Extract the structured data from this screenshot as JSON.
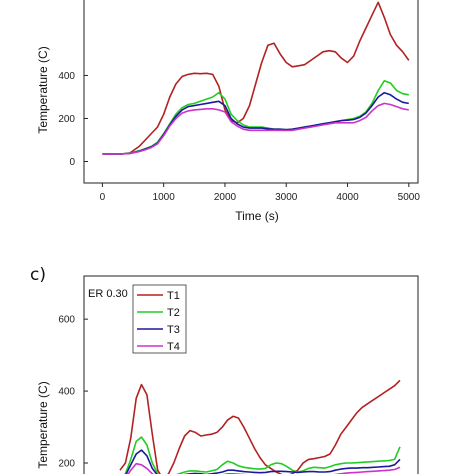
{
  "chart_data": [
    {
      "type": "line",
      "panel_label": "",
      "xlabel": "Time (s)",
      "ylabel": "Temperature (C)",
      "xlim": [
        -300,
        5150
      ],
      "ylim": [
        -100,
        760
      ],
      "xticks": [
        0,
        1000,
        2000,
        3000,
        4000,
        5000
      ],
      "yticks": [
        0,
        200,
        400
      ],
      "x": [
        0,
        300,
        450,
        600,
        700,
        800,
        900,
        1000,
        1100,
        1200,
        1300,
        1400,
        1500,
        1600,
        1700,
        1800,
        1900,
        2000,
        2100,
        2200,
        2300,
        2400,
        2500,
        2600,
        2700,
        2800,
        2900,
        3000,
        3100,
        3200,
        3300,
        3400,
        3500,
        3600,
        3700,
        3800,
        3900,
        4000,
        4100,
        4200,
        4300,
        4400,
        4500,
        4600,
        4700,
        4800,
        4900,
        5000
      ],
      "series": [
        {
          "name": "T1",
          "color": "#b22222",
          "values": [
            35,
            35,
            40,
            70,
            100,
            130,
            160,
            220,
            300,
            360,
            395,
            405,
            410,
            408,
            410,
            405,
            350,
            240,
            190,
            180,
            200,
            260,
            360,
            460,
            540,
            550,
            500,
            460,
            440,
            445,
            450,
            470,
            490,
            510,
            515,
            510,
            480,
            460,
            490,
            560,
            620,
            680,
            740,
            670,
            590,
            540,
            510,
            470
          ]
        },
        {
          "name": "T2",
          "color": "#22cc22",
          "values": [
            35,
            35,
            38,
            50,
            60,
            70,
            90,
            130,
            175,
            220,
            250,
            265,
            270,
            280,
            290,
            300,
            320,
            290,
            220,
            190,
            170,
            160,
            160,
            160,
            155,
            150,
            150,
            148,
            150,
            155,
            160,
            165,
            170,
            175,
            180,
            185,
            190,
            195,
            200,
            210,
            230,
            270,
            330,
            375,
            365,
            330,
            315,
            310
          ]
        },
        {
          "name": "T3",
          "color": "#1a1a9a",
          "values": [
            35,
            35,
            37,
            48,
            58,
            68,
            85,
            125,
            170,
            210,
            240,
            255,
            260,
            265,
            270,
            275,
            280,
            260,
            200,
            175,
            160,
            155,
            155,
            155,
            152,
            150,
            150,
            148,
            150,
            155,
            160,
            165,
            170,
            175,
            180,
            185,
            190,
            192,
            195,
            205,
            225,
            260,
            300,
            320,
            310,
            290,
            275,
            270
          ]
        },
        {
          "name": "T4",
          "color": "#cc33cc",
          "values": [
            35,
            35,
            37,
            46,
            55,
            65,
            82,
            120,
            165,
            200,
            225,
            235,
            240,
            242,
            245,
            245,
            240,
            230,
            185,
            165,
            150,
            145,
            145,
            145,
            145,
            145,
            145,
            144,
            145,
            150,
            155,
            160,
            165,
            170,
            175,
            180,
            180,
            180,
            180,
            190,
            205,
            235,
            260,
            270,
            265,
            255,
            245,
            240
          ]
        }
      ]
    },
    {
      "type": "line",
      "panel_label": "c)",
      "ylabel": "Temperature (C)",
      "ylim": [
        150,
        720
      ],
      "yticks": [
        200,
        400,
        600
      ],
      "legend_title": "ER 0.30",
      "legend_position": "top-left",
      "x": [
        0,
        50,
        100,
        150,
        200,
        250,
        300,
        350,
        400,
        450,
        500,
        550,
        600,
        650,
        700,
        750,
        800,
        850,
        900,
        950,
        1000,
        1050,
        1100,
        1150,
        1200,
        1250,
        1300,
        1350,
        1400,
        1450,
        1500,
        1550,
        1600,
        1650,
        1700,
        1750,
        1800,
        1850,
        1900,
        1950,
        2000,
        2050,
        2100,
        2150,
        2200,
        2250,
        2300,
        2350,
        2400,
        2450,
        2500,
        2550,
        2600
      ],
      "series": [
        {
          "name": "T1",
          "color": "#b22222",
          "values": [
            180,
            200,
            270,
            380,
            418,
            390,
            280,
            180,
            155,
            170,
            200,
            240,
            275,
            290,
            285,
            275,
            278,
            280,
            285,
            300,
            320,
            330,
            325,
            300,
            270,
            240,
            215,
            195,
            185,
            175,
            168,
            165,
            170,
            180,
            200,
            210,
            212,
            215,
            218,
            225,
            250,
            280,
            300,
            320,
            340,
            355,
            365,
            375,
            385,
            395,
            405,
            415,
            430
          ]
        },
        {
          "name": "T2",
          "color": "#22cc22",
          "values": [
            160,
            170,
            210,
            260,
            272,
            250,
            200,
            170,
            160,
            162,
            165,
            170,
            175,
            178,
            178,
            176,
            175,
            178,
            182,
            195,
            205,
            200,
            192,
            188,
            186,
            184,
            183,
            185,
            195,
            200,
            198,
            190,
            180,
            175,
            178,
            185,
            188,
            187,
            186,
            190,
            195,
            198,
            200,
            200,
            201,
            202,
            203,
            204,
            205,
            206,
            207,
            210,
            245
          ]
        },
        {
          "name": "T3",
          "color": "#1a1a9a",
          "values": [
            155,
            165,
            195,
            225,
            236,
            220,
            185,
            165,
            158,
            160,
            162,
            165,
            168,
            170,
            171,
            170,
            168,
            170,
            172,
            175,
            180,
            180,
            178,
            176,
            175,
            174,
            173,
            174,
            176,
            177,
            177,
            176,
            175,
            174,
            175,
            176,
            176,
            175,
            175,
            176,
            180,
            183,
            185,
            186,
            186,
            187,
            187,
            188,
            189,
            190,
            191,
            195,
            210
          ]
        },
        {
          "name": "T4",
          "color": "#cc33cc",
          "values": [
            150,
            158,
            180,
            198,
            195,
            185,
            170,
            162,
            158,
            159,
            160,
            161,
            162,
            163,
            163,
            162,
            162,
            163,
            165,
            167,
            170,
            170,
            169,
            168,
            167,
            166,
            165,
            165,
            165,
            166,
            166,
            165,
            165,
            164,
            164,
            165,
            165,
            165,
            165,
            166,
            168,
            170,
            172,
            173,
            174,
            175,
            176,
            177,
            178,
            179,
            180,
            182,
            188
          ]
        }
      ]
    }
  ]
}
